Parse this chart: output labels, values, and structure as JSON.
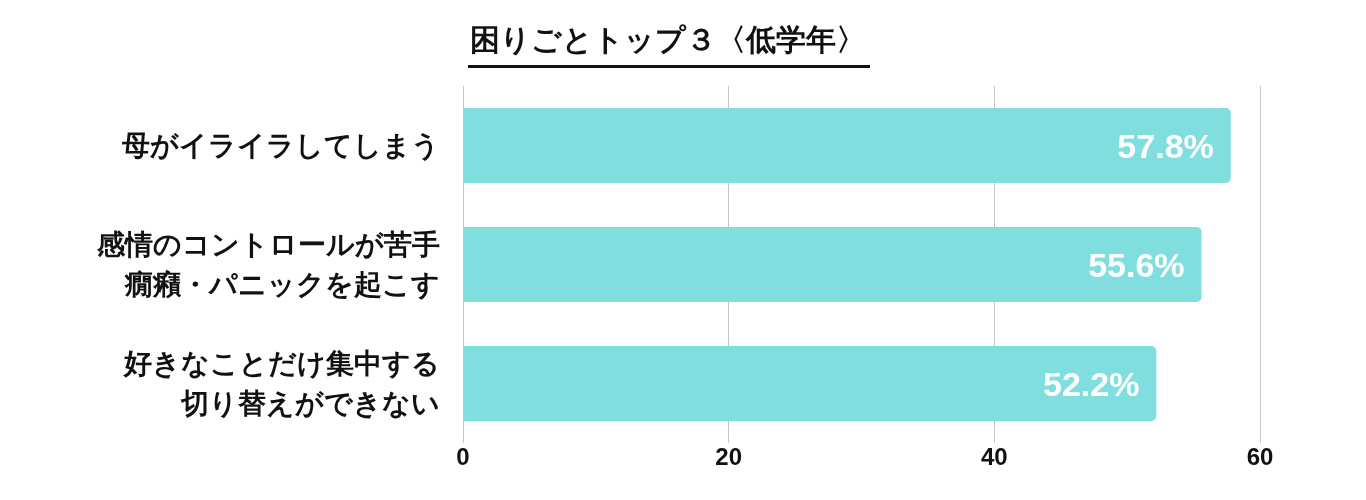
{
  "chart_data": {
    "type": "bar",
    "orientation": "horizontal",
    "title": "困りごとトップ３〈低学年〉",
    "categories": [
      "母がイライラしてしまう",
      "感情のコントロールが苦手癇癪・パニックを起こす",
      "好きなことだけ集中する切り替えができない"
    ],
    "values": [
      57.8,
      55.6,
      52.2
    ],
    "color": "#80dede",
    "value_labels": [
      "57.8%",
      "55.6%",
      "52.2%"
    ],
    "xlim": [
      0,
      60
    ],
    "xticks": [
      0,
      20,
      40,
      60
    ],
    "grid": "x"
  }
}
